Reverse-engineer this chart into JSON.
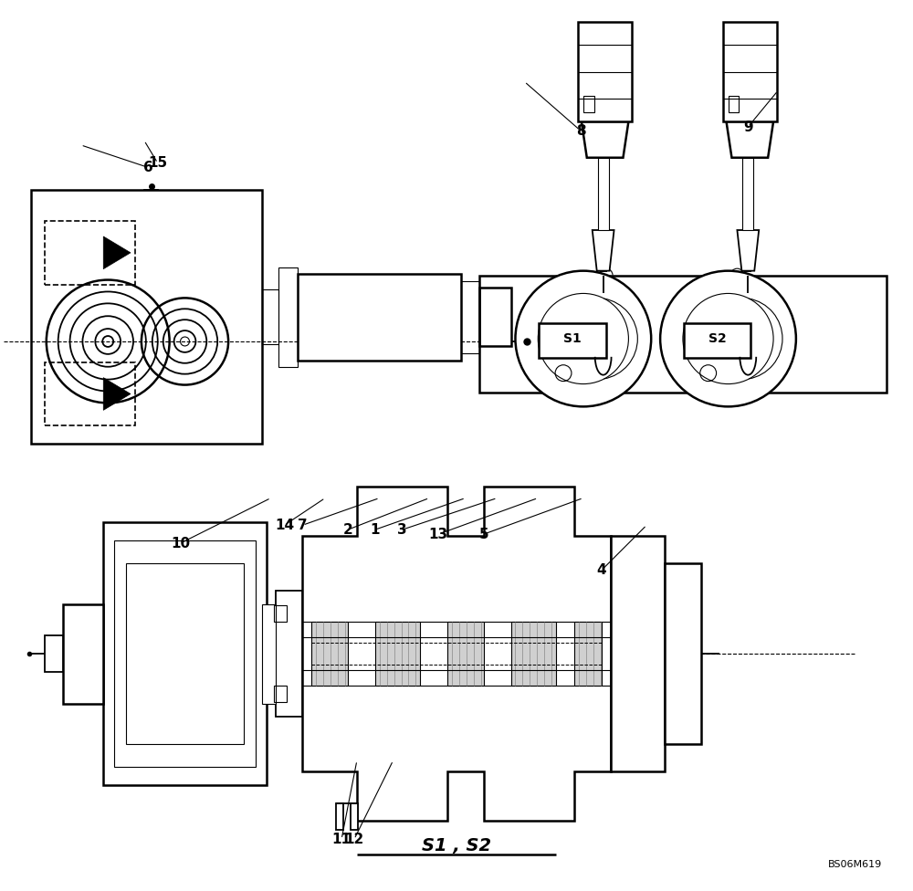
{
  "bg_color": "#ffffff",
  "fig_width": 10.0,
  "fig_height": 9.76,
  "title_text": "S1 , S2",
  "watermark": "BS06M619",
  "lw_thick": 1.8,
  "lw_main": 1.3,
  "lw_thin": 0.8
}
